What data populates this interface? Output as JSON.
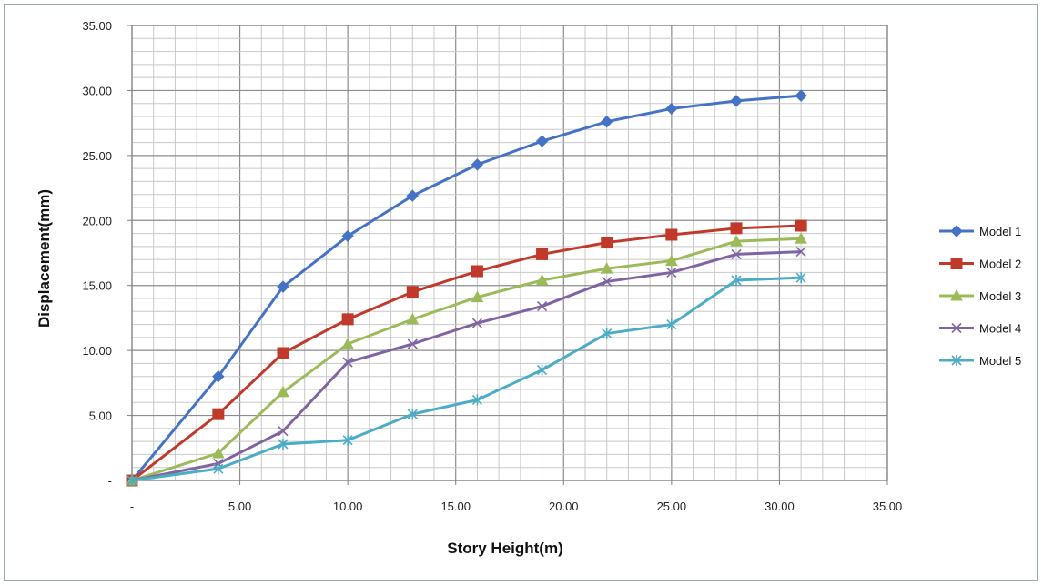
{
  "chart_data": {
    "type": "line",
    "title": "",
    "xlabel": "Story Height(m)",
    "ylabel": "Displacement(mm)",
    "xlim": [
      0,
      35
    ],
    "ylim": [
      0,
      35
    ],
    "x_ticks": [
      "-",
      "5.00",
      "10.00",
      "15.00",
      "20.00",
      "25.00",
      "30.00",
      "35.00"
    ],
    "y_ticks": [
      "-",
      "5.00",
      "10.00",
      "15.00",
      "20.00",
      "25.00",
      "30.00",
      "35.00"
    ],
    "grid": true,
    "legend_position": "right",
    "x": [
      0,
      4,
      7,
      10,
      13,
      16,
      19,
      22,
      25,
      28,
      31
    ],
    "series": [
      {
        "name": "Model 1",
        "color": "#4472C4",
        "marker": "diamond",
        "values": [
          0,
          8.0,
          14.9,
          18.8,
          21.9,
          24.3,
          26.1,
          27.6,
          28.6,
          29.2,
          29.6
        ]
      },
      {
        "name": "Model 2",
        "color": "#C0392B",
        "marker": "square",
        "values": [
          0,
          5.1,
          9.8,
          12.4,
          14.5,
          16.1,
          17.4,
          18.3,
          18.9,
          19.4,
          19.6
        ]
      },
      {
        "name": "Model 3",
        "color": "#9BBB59",
        "marker": "triangle",
        "values": [
          0,
          2.1,
          6.8,
          10.5,
          12.4,
          14.1,
          15.4,
          16.3,
          16.9,
          18.4,
          18.6
        ]
      },
      {
        "name": "Model 4",
        "color": "#8064A2",
        "marker": "x",
        "values": [
          0,
          1.3,
          3.8,
          9.1,
          10.5,
          12.1,
          13.4,
          15.3,
          16.0,
          17.4,
          17.6
        ]
      },
      {
        "name": "Model 5",
        "color": "#4BACC6",
        "marker": "star",
        "values": [
          0,
          0.9,
          2.8,
          3.1,
          5.1,
          6.2,
          8.5,
          11.3,
          12.0,
          15.4,
          15.6
        ]
      }
    ]
  }
}
